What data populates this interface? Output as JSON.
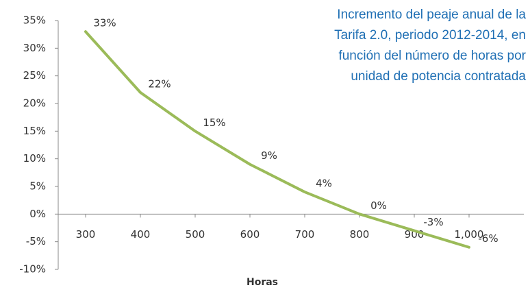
{
  "chart_data": {
    "type": "line",
    "title": [
      "Incremento del peaje anual de la",
      "Tarifa 2.0, periodo 2012-2014, en",
      "función del número de horas por",
      "unidad de potencia contratada"
    ],
    "x_label": "Horas",
    "x": [
      300,
      400,
      500,
      600,
      700,
      800,
      900,
      1000
    ],
    "series": [
      {
        "name": "Incremento",
        "color": "#9bbb59",
        "values": [
          33,
          22,
          15,
          9,
          4,
          0,
          -3,
          -6
        ],
        "value_labels": [
          "33%",
          "22%",
          "15%",
          "9%",
          "4%",
          "0%",
          "-3%",
          "-6%"
        ]
      }
    ],
    "xlim": [
      250,
      1100
    ],
    "xticks": [
      300,
      400,
      500,
      600,
      700,
      800,
      900,
      {
        "value": 1000,
        "label": "1,000"
      }
    ],
    "ylim": [
      -10,
      35
    ],
    "yticks": [
      {
        "value": -10,
        "label": "-10%"
      },
      {
        "value": -5,
        "label": "-5%"
      },
      {
        "value": 0,
        "label": "0%"
      },
      {
        "value": 5,
        "label": "5%"
      },
      {
        "value": 10,
        "label": "10%"
      },
      {
        "value": 15,
        "label": "15%"
      },
      {
        "value": 20,
        "label": "20%"
      },
      {
        "value": 25,
        "label": "25%"
      },
      {
        "value": 30,
        "label": "30%"
      },
      {
        "value": 35,
        "label": "35%"
      }
    ],
    "grid": false
  }
}
